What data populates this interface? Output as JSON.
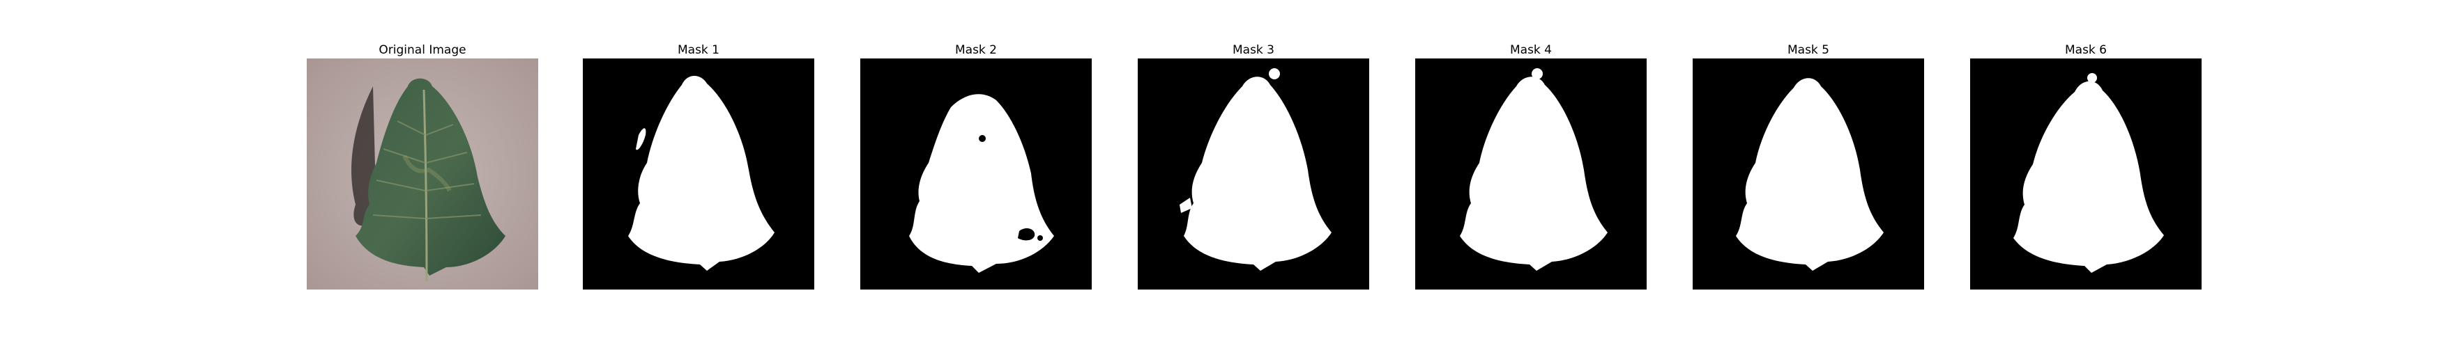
{
  "panels": [
    {
      "title": "Original Image",
      "type": "photo",
      "content": "tomato leaf on gray background"
    },
    {
      "title": "Mask 1",
      "type": "mask"
    },
    {
      "title": "Mask 2",
      "type": "mask"
    },
    {
      "title": "Mask 3",
      "type": "mask"
    },
    {
      "title": "Mask 4",
      "type": "mask"
    },
    {
      "title": "Mask 5",
      "type": "mask"
    },
    {
      "title": "Mask 6",
      "type": "mask"
    }
  ],
  "colors": {
    "mask_background": "#000000",
    "mask_foreground": "#ffffff",
    "photo_background": "#b9aaa8",
    "leaf_dark": "#2f4b38",
    "leaf_mid": "#4f6b52",
    "leaf_light": "#8c9a6a"
  }
}
